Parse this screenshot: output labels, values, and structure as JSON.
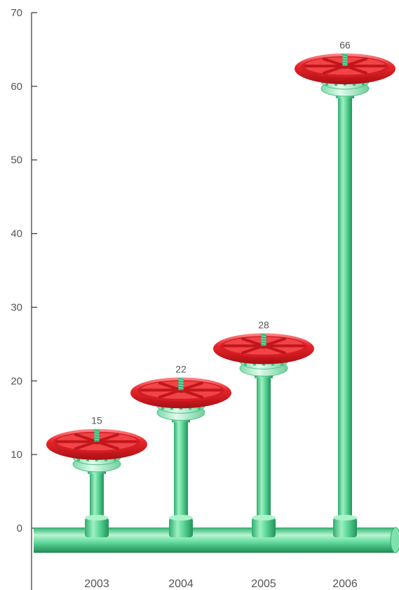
{
  "chart_data": {
    "type": "bar",
    "categories": [
      "2003",
      "2004",
      "2005",
      "2006"
    ],
    "values": [
      15,
      22,
      28,
      66
    ],
    "yticks": [
      0,
      10,
      20,
      30,
      40,
      50,
      60,
      70
    ],
    "ylim": [
      0,
      70
    ],
    "grid": false,
    "colors": {
      "pipe": "#5ed89a",
      "pipe_dark": "#2fae6e",
      "pipe_light": "#c9f3dc",
      "wheel": "#e8262b",
      "wheel_dark": "#b01217",
      "wheel_light": "#ff7b7e",
      "axis": "#333333"
    }
  }
}
